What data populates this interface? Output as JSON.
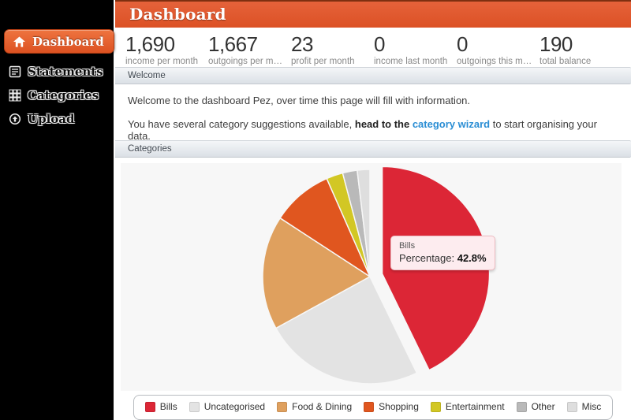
{
  "header": {
    "title": "Dashboard"
  },
  "sidebar": {
    "items": [
      {
        "label": "Dashboard",
        "icon": "home-icon",
        "active": true
      },
      {
        "label": "Statements",
        "icon": "statements-icon",
        "active": false
      },
      {
        "label": "Categories",
        "icon": "categories-icon",
        "active": false
      },
      {
        "label": "Upload",
        "icon": "upload-icon",
        "active": false
      }
    ]
  },
  "stats": [
    {
      "value": "1,690",
      "label": "income per month"
    },
    {
      "value": "1,667",
      "label": "outgoings per month"
    },
    {
      "value": "23",
      "label": "profit per month"
    },
    {
      "value": "0",
      "label": "income last month"
    },
    {
      "value": "0",
      "label": "outgoings this month"
    },
    {
      "value": "190",
      "label": "total balance"
    }
  ],
  "welcome_section": {
    "title": "Welcome",
    "line1": "Welcome to the dashboard Pez, over time this page will fill with information.",
    "line2_prefix": "You have several category suggestions available, ",
    "line2_bold": "head to the ",
    "line2_link": "category wizard",
    "line2_suffix": " to start organising your data."
  },
  "categories_section": {
    "title": "Categories"
  },
  "chart_data": {
    "type": "pie",
    "title": "Categories",
    "legend_position": "bottom",
    "slices": [
      {
        "label": "Bills",
        "value": 42.8,
        "color": "#dc2636",
        "exploded": true
      },
      {
        "label": "Uncategorised",
        "value": 24.2,
        "color": "#e3e3e3",
        "exploded": false
      },
      {
        "label": "Food & Dining",
        "value": 17.2,
        "color": "#dfa05e",
        "exploded": false
      },
      {
        "label": "Shopping",
        "value": 9.2,
        "color": "#e0561f",
        "exploded": false
      },
      {
        "label": "Entertainment",
        "value": 2.5,
        "color": "#d2c724",
        "exploded": false
      },
      {
        "label": "Other",
        "value": 2.2,
        "color": "#b9b9b9",
        "exploded": false
      },
      {
        "label": "Misc",
        "value": 1.9,
        "color": "#dedede",
        "exploded": false
      }
    ],
    "tooltip": {
      "title": "Bills",
      "label": "Percentage: ",
      "value": "42.8%"
    }
  },
  "colors": {
    "accent_orange": "#dd5226",
    "link_blue": "#2b8ed4",
    "chart_bg": "#f7f7f7",
    "sidebar_bg": "#000000"
  }
}
